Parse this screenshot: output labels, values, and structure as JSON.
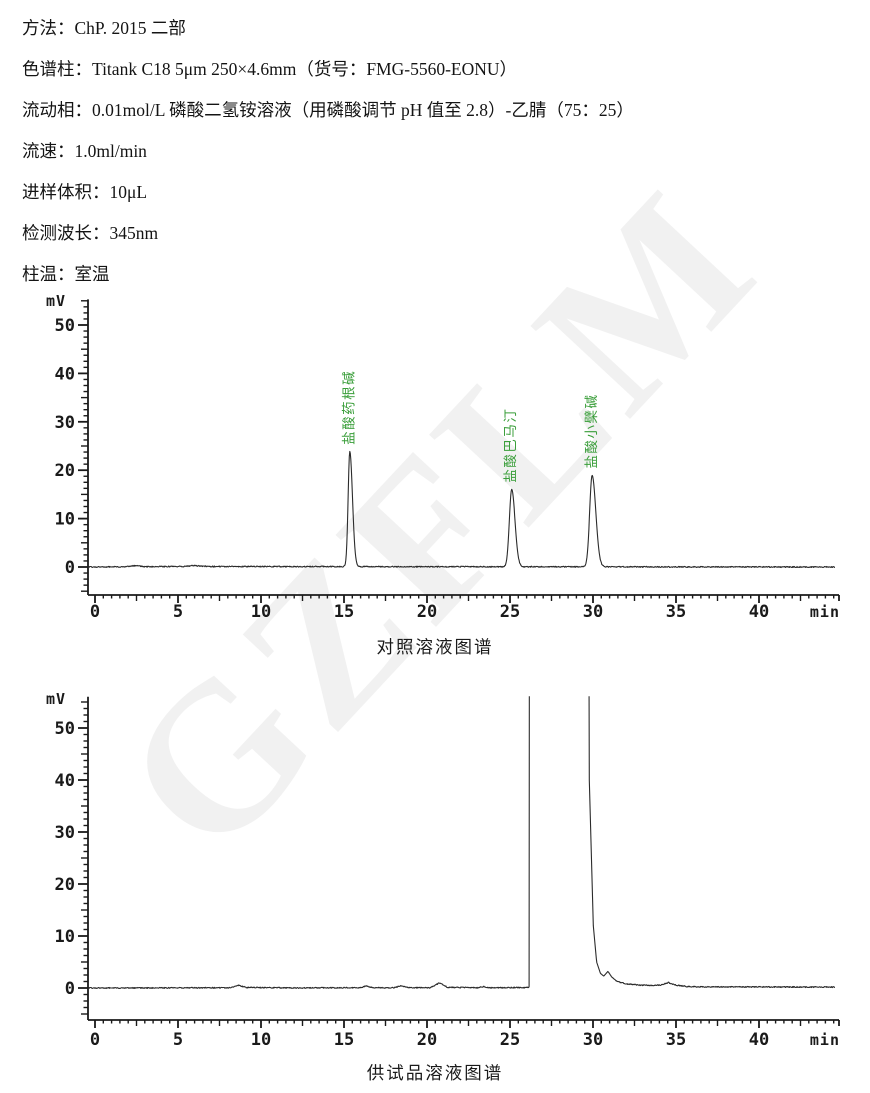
{
  "header": {
    "lines": [
      "方法：ChP. 2015  二部",
      "色谱柱：Titank C18 5μm 250×4.6mm（货号：FMG-5560-EONU）",
      "流动相：0.01mol/L 磷酸二氢铵溶液（用磷酸调节 pH 值至 2.8）-乙腈（75：25）",
      "流速：1.0ml/min",
      "进样体积：10μL",
      "检测波长：345nm",
      "柱温：室温"
    ]
  },
  "watermark": {
    "text": "GZFLM"
  },
  "chart_data": [
    {
      "type": "line",
      "title": "对照溶液图谱",
      "xlabel": "min",
      "ylabel": "mV",
      "x_range": [
        0,
        44.6
      ],
      "y_range": [
        -5.8,
        55.3
      ],
      "x_ticks": [
        0,
        5,
        10,
        15,
        20,
        25,
        30,
        35,
        40
      ],
      "x_minor_step": 0.5,
      "y_ticks": [
        0,
        10,
        20,
        30,
        40,
        50
      ],
      "y_minor_step": 1.25,
      "grid": false,
      "legend": "none",
      "trace_color": "#2b2b2b",
      "axis_color": "#1a1a1a",
      "peak_label_color": "#3a9e3a",
      "noise_mv": 0.22,
      "peaks": [
        {
          "name": "盐酸药根碱",
          "rt_min": 15.35,
          "height_mv": 23.8,
          "sigma_min": [
            0.1,
            0.16
          ]
        },
        {
          "name": "盐酸巴马汀",
          "rt_min": 25.1,
          "height_mv": 16.0,
          "sigma_min": [
            0.14,
            0.2
          ]
        },
        {
          "name": "盐酸小檗碱",
          "rt_min": 29.95,
          "height_mv": 18.9,
          "sigma_min": [
            0.15,
            0.22
          ]
        }
      ],
      "trace_anchors": [
        [
          0,
          0
        ],
        [
          1.8,
          0.05
        ],
        [
          2.4,
          0.28
        ],
        [
          3.0,
          0.08
        ],
        [
          5.3,
          0.1
        ],
        [
          6.0,
          0.3
        ],
        [
          6.8,
          0.1
        ],
        [
          44.6,
          0
        ]
      ]
    },
    {
      "type": "line",
      "title": "供试品溶液图谱",
      "xlabel": "min",
      "ylabel": "mV",
      "x_range": [
        0,
        44.6
      ],
      "y_range": [
        -5.6,
        56.0
      ],
      "x_ticks": [
        0,
        5,
        10,
        15,
        20,
        25,
        30,
        35,
        40
      ],
      "x_minor_step": 0.5,
      "y_ticks": [
        0,
        10,
        20,
        30,
        40,
        50
      ],
      "y_minor_step": 1.25,
      "grid": false,
      "legend": "none",
      "trace_color": "#2b2b2b",
      "axis_color": "#1a1a1a",
      "peak_label_color": "#3a9e3a",
      "noise_mv": 0.2,
      "peaks": [
        {
          "name": "",
          "rt_min": 26.2,
          "height_mv": ">56 (off-scale)",
          "offscale": true
        },
        {
          "name": "",
          "rt_min": 30.0,
          "height_mv": ">56 (off-scale)",
          "offscale": true
        }
      ],
      "trace_anchors": [
        [
          0,
          0
        ],
        [
          8.2,
          0.05
        ],
        [
          8.65,
          0.55
        ],
        [
          9.1,
          0.1
        ],
        [
          12,
          0.02
        ],
        [
          15.9,
          0.05
        ],
        [
          16.35,
          0.35
        ],
        [
          16.8,
          0.05
        ],
        [
          18.0,
          0.05
        ],
        [
          18.45,
          0.45
        ],
        [
          18.9,
          0.08
        ],
        [
          20.2,
          0.05
        ],
        [
          20.75,
          1.0
        ],
        [
          21.25,
          0.12
        ],
        [
          23.0,
          0.05
        ],
        [
          23.4,
          0.25
        ],
        [
          23.8,
          0.05
        ],
        [
          26.1,
          0.1
        ],
        [
          26.16,
          0.3
        ],
        [
          26.24,
          500
        ],
        [
          29.3,
          500
        ],
        [
          29.78,
          40
        ],
        [
          30.02,
          12
        ],
        [
          30.22,
          5
        ],
        [
          30.45,
          2.8
        ],
        [
          30.65,
          2.3
        ],
        [
          30.9,
          3.2
        ],
        [
          31.15,
          2.0
        ],
        [
          31.5,
          1.2
        ],
        [
          32.0,
          0.8
        ],
        [
          32.8,
          0.55
        ],
        [
          33.6,
          0.5
        ],
        [
          34.1,
          0.6
        ],
        [
          34.55,
          1.05
        ],
        [
          35.0,
          0.55
        ],
        [
          35.6,
          0.3
        ],
        [
          36.5,
          0.22
        ],
        [
          44.6,
          0.18
        ]
      ]
    }
  ]
}
